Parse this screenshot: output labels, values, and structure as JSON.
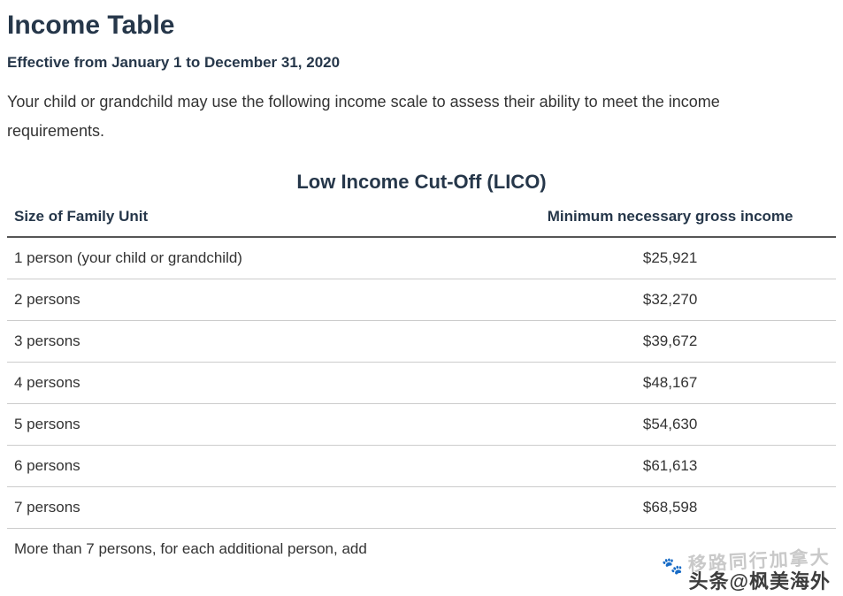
{
  "page": {
    "title": "Income Table",
    "effective": "Effective from January 1 to December 31, 2020",
    "intro": "Your child or grandchild may use the following income scale to assess their ability to meet the income requirements.",
    "table_title": "Low Income Cut-Off (LICO)"
  },
  "table": {
    "columns": [
      "Size of Family Unit",
      "Minimum necessary gross income"
    ],
    "rows": [
      {
        "label": "1 person (your child or grandchild)",
        "value": "$25,921"
      },
      {
        "label": "2 persons",
        "value": "$32,270"
      },
      {
        "label": "3 persons",
        "value": "$39,672"
      },
      {
        "label": "4 persons",
        "value": "$48,167"
      },
      {
        "label": "5 persons",
        "value": "$54,630"
      },
      {
        "label": "6 persons",
        "value": "$61,613"
      },
      {
        "label": "7 persons",
        "value": "$68,598"
      },
      {
        "label": "More than 7 persons, for each additional person, add",
        "value": ""
      }
    ]
  },
  "watermark": {
    "paw_icon": "🐾",
    "line1": "移路同行加拿大",
    "line2": "头条@枫美海外"
  },
  "colors": {
    "heading": "#26374a",
    "text": "#333333",
    "header_border": "#555555",
    "row_border": "#cccccc",
    "watermark_light": "#c9c9c9",
    "watermark_dark": "#3d3d3d"
  }
}
